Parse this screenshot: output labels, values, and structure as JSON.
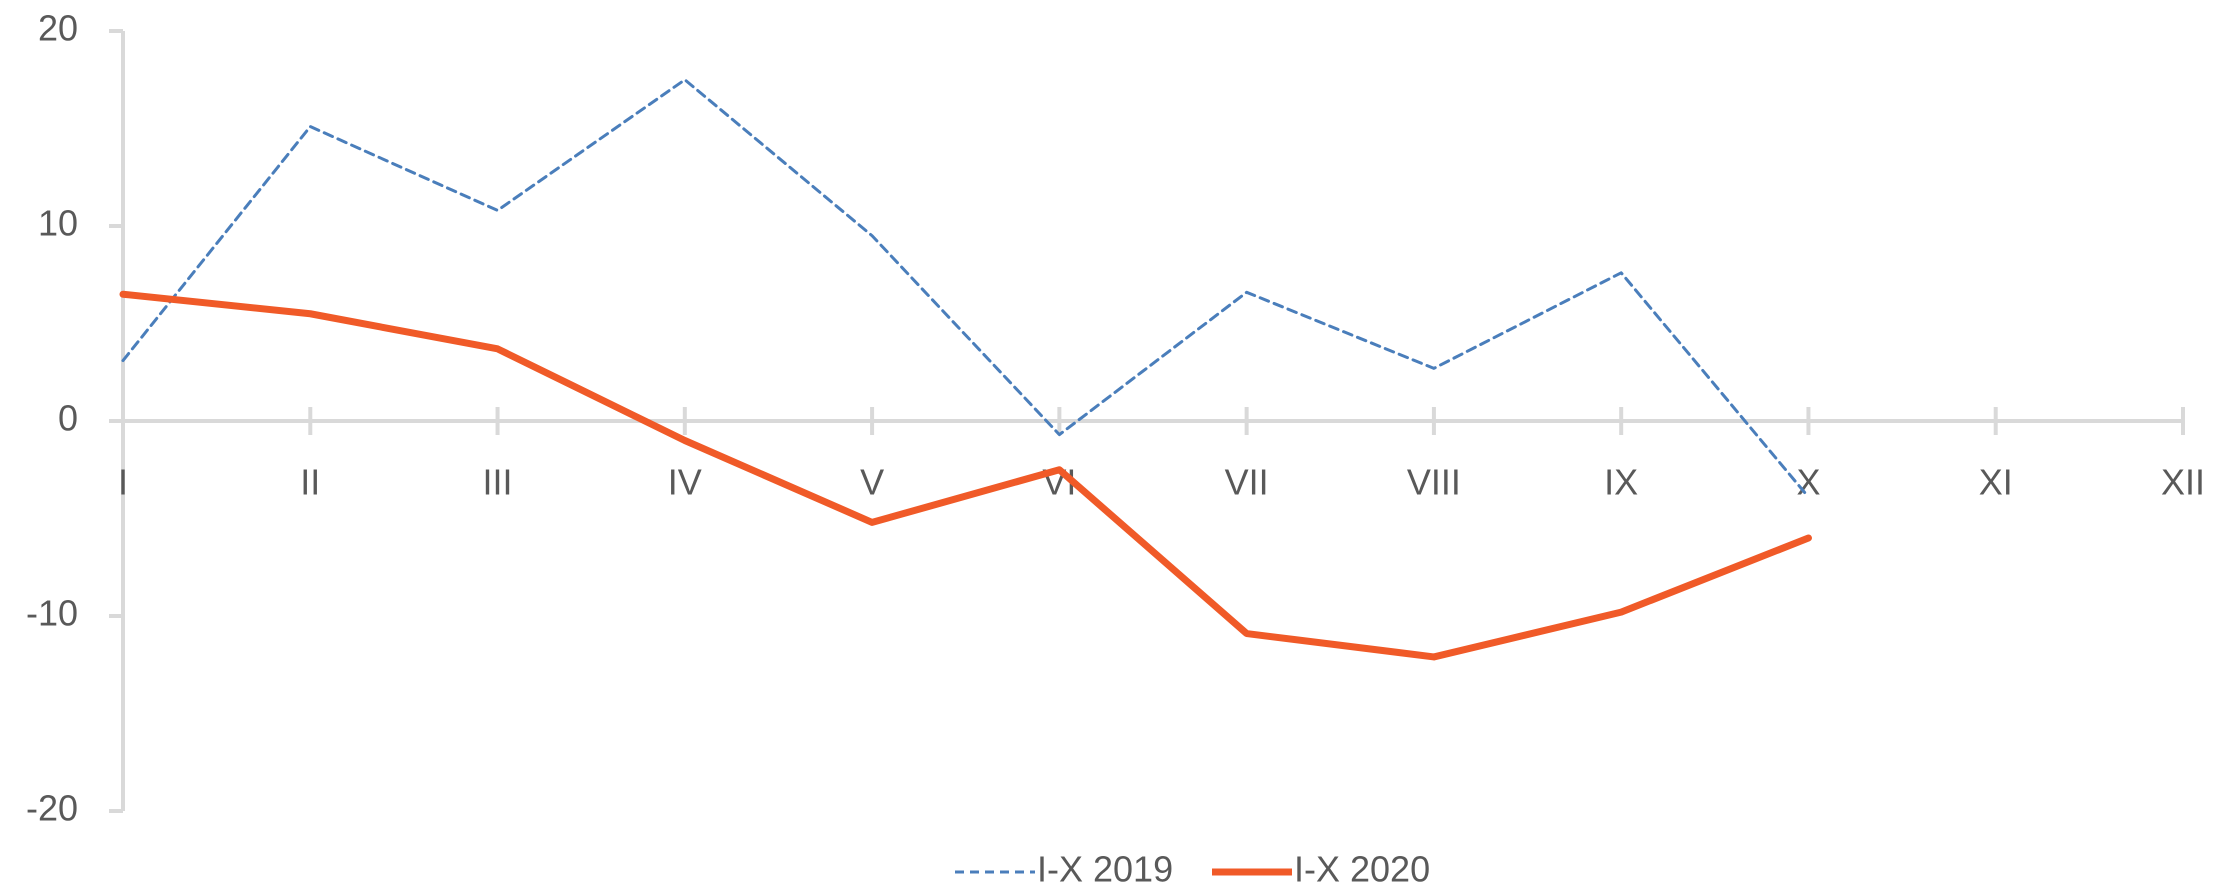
{
  "chart_data": {
    "type": "line",
    "categories": [
      "I",
      "II",
      "III",
      "IV",
      "V",
      "VI",
      "VII",
      "VIII",
      "IX",
      "X",
      "XI",
      "XII"
    ],
    "series": [
      {
        "name": "I-X 2019",
        "color": "#4a7ebb",
        "dashed": true,
        "values": [
          3.1,
          15.1,
          10.8,
          17.5,
          9.5,
          -0.7,
          6.6,
          2.7,
          7.6,
          -3.9,
          null,
          null
        ]
      },
      {
        "name": "I-X 2020",
        "color": "#f05a28",
        "dashed": false,
        "values": [
          6.5,
          5.5,
          3.7,
          -1,
          -5.2,
          -2.5,
          -10.9,
          -12.1,
          -9.8,
          -6,
          null,
          null
        ]
      }
    ],
    "ylim": [
      -20,
      20
    ],
    "yticks": [
      -20,
      -10,
      0,
      10,
      20
    ],
    "legend": "bottom"
  }
}
